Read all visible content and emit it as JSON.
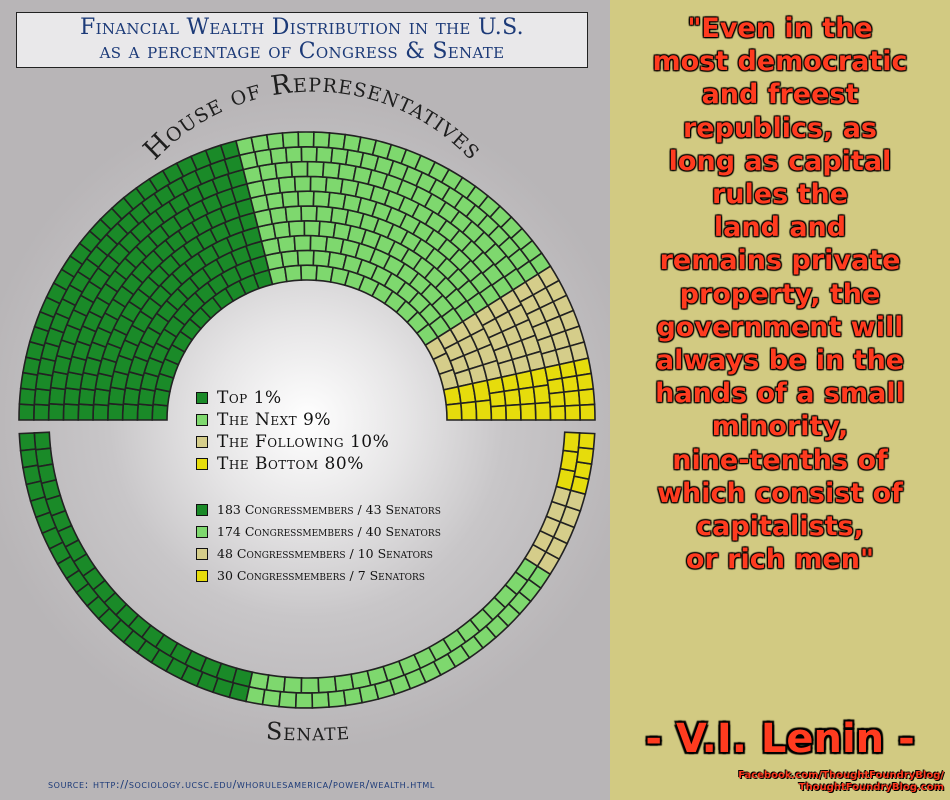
{
  "title": {
    "line1": "Financial Wealth Distribution in the U.S.",
    "line2": "as a percentage of Congress & Senate"
  },
  "chart_data": {
    "type": "semicircle-seat-chart",
    "house": {
      "label": "House of Representatives",
      "rows": 10,
      "groups": [
        {
          "name": "Top 1%",
          "seats": 183,
          "color": "#1a8a28"
        },
        {
          "name": "The Next 9%",
          "seats": 174,
          "color": "#7ed86e"
        },
        {
          "name": "The Following 10%",
          "seats": 48,
          "color": "#d5cd8a"
        },
        {
          "name": "The Bottom 80%",
          "seats": 30,
          "color": "#e6dc0c"
        }
      ]
    },
    "senate": {
      "label": "Senate",
      "rows": 2,
      "groups": [
        {
          "name": "Top 1%",
          "seats": 43,
          "color": "#1a8a28"
        },
        {
          "name": "The Next 9%",
          "seats": 40,
          "color": "#7ed86e"
        },
        {
          "name": "The Following 10%",
          "seats": 10,
          "color": "#d5cd8a"
        },
        {
          "name": "The Bottom 80%",
          "seats": 7,
          "color": "#e6dc0c"
        }
      ]
    }
  },
  "legend": {
    "groups": [
      {
        "label": "Top 1%",
        "color": "#1a8a28"
      },
      {
        "label": "The Next 9%",
        "color": "#7ed86e"
      },
      {
        "label": "The Following 10%",
        "color": "#d5cd8a"
      },
      {
        "label": "The Bottom 80%",
        "color": "#e6dc0c"
      }
    ],
    "counts": [
      {
        "label": "183 Congressmembers / 43 Senators",
        "color": "#1a8a28"
      },
      {
        "label": "174 Congressmembers / 40 Senators",
        "color": "#7ed86e"
      },
      {
        "label": "48 Congressmembers / 10 Senators",
        "color": "#d5cd8a"
      },
      {
        "label": "30 Congressmembers / 7 Senators",
        "color": "#e6dc0c"
      }
    ]
  },
  "source": "source: http://sociology.ucsc.edu/whorulesamerica/power/wealth.html",
  "quote": {
    "lines": [
      "\"Even in the",
      "most democratic",
      "and freest",
      "republics, as",
      "long as capital",
      "rules the",
      "land and",
      "remains private",
      "property, the",
      "government will",
      "always be in the",
      "hands of a small",
      "minority,",
      "nine-tenths of",
      "which consist of",
      "capitalists,",
      "or rich men\""
    ],
    "author": "- V.I. Lenin -"
  },
  "credit": {
    "line1": "Facebook.com/ThoughtFoundryBlog/",
    "line2": "ThoughtFoundryBlog.com"
  }
}
